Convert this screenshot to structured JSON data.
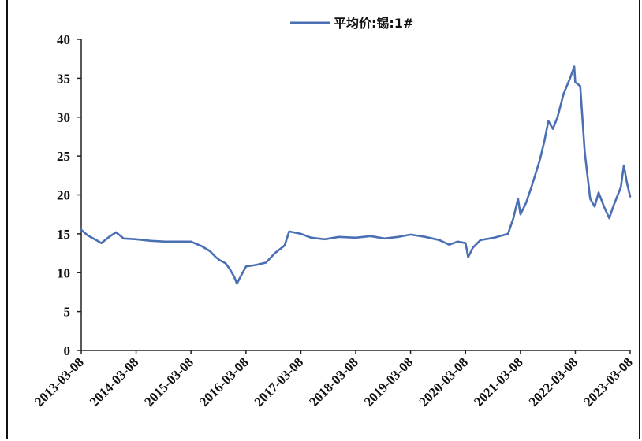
{
  "chart_data": {
    "type": "line",
    "title": "",
    "xlabel": "",
    "ylabel": "",
    "ylim": [
      0,
      40
    ],
    "yticks": [
      0,
      5,
      10,
      15,
      20,
      25,
      30,
      35,
      40
    ],
    "xticks": [
      "2013-03-08",
      "2014-03-08",
      "2015-03-08",
      "2016-03-08",
      "2017-03-08",
      "2018-03-08",
      "2019-03-08",
      "2020-03-08",
      "2021-03-08",
      "2022-03-08",
      "2023-03-08"
    ],
    "xlim": [
      "2013-03-08",
      "2023-03-08"
    ],
    "grid": false,
    "legend_position": "top",
    "series": [
      {
        "name": "平均价:锡:1#",
        "color": "#4a6fb3",
        "points": [
          [
            "2013-03-08",
            15.5
          ],
          [
            "2013-04-20",
            14.8
          ],
          [
            "2013-06-15",
            14.2
          ],
          [
            "2013-07-20",
            13.8
          ],
          [
            "2013-09-10",
            14.6
          ],
          [
            "2013-10-25",
            15.2
          ],
          [
            "2013-12-15",
            14.4
          ],
          [
            "2014-03-08",
            14.3
          ],
          [
            "2014-06-15",
            14.1
          ],
          [
            "2014-09-20",
            14.0
          ],
          [
            "2014-12-15",
            14.0
          ],
          [
            "2015-03-08",
            14.0
          ],
          [
            "2015-05-20",
            13.4
          ],
          [
            "2015-07-10",
            12.8
          ],
          [
            "2015-08-20",
            12.0
          ],
          [
            "2015-09-15",
            11.6
          ],
          [
            "2015-10-25",
            11.2
          ],
          [
            "2015-11-20",
            10.5
          ],
          [
            "2015-12-20",
            9.5
          ],
          [
            "2016-01-08",
            8.6
          ],
          [
            "2016-02-01",
            9.5
          ],
          [
            "2016-03-08",
            10.8
          ],
          [
            "2016-05-15",
            11.0
          ],
          [
            "2016-07-20",
            11.3
          ],
          [
            "2016-09-15",
            12.5
          ],
          [
            "2016-11-20",
            13.5
          ],
          [
            "2016-12-20",
            15.3
          ],
          [
            "2017-03-08",
            15.0
          ],
          [
            "2017-05-15",
            14.5
          ],
          [
            "2017-08-15",
            14.3
          ],
          [
            "2017-11-15",
            14.6
          ],
          [
            "2018-03-08",
            14.5
          ],
          [
            "2018-06-15",
            14.7
          ],
          [
            "2018-09-15",
            14.4
          ],
          [
            "2018-12-15",
            14.6
          ],
          [
            "2019-03-08",
            14.9
          ],
          [
            "2019-06-15",
            14.6
          ],
          [
            "2019-09-15",
            14.2
          ],
          [
            "2019-11-20",
            13.6
          ],
          [
            "2020-01-15",
            14.0
          ],
          [
            "2020-03-08",
            13.8
          ],
          [
            "2020-03-25",
            12.0
          ],
          [
            "2020-04-25",
            13.2
          ],
          [
            "2020-06-15",
            14.2
          ],
          [
            "2020-09-15",
            14.5
          ],
          [
            "2020-12-15",
            15.0
          ],
          [
            "2021-01-20",
            17.0
          ],
          [
            "2021-02-20",
            19.5
          ],
          [
            "2021-03-08",
            17.5
          ],
          [
            "2021-04-15",
            19.0
          ],
          [
            "2021-05-20",
            21.0
          ],
          [
            "2021-07-15",
            24.5
          ],
          [
            "2021-08-15",
            27.0
          ],
          [
            "2021-09-10",
            29.5
          ],
          [
            "2021-10-10",
            28.5
          ],
          [
            "2021-11-10",
            30.0
          ],
          [
            "2021-12-20",
            33.0
          ],
          [
            "2022-02-01",
            35.0
          ],
          [
            "2022-03-01",
            36.5
          ],
          [
            "2022-03-08",
            34.5
          ],
          [
            "2022-04-10",
            34.0
          ],
          [
            "2022-05-10",
            25.5
          ],
          [
            "2022-06-15",
            19.5
          ],
          [
            "2022-07-15",
            18.5
          ],
          [
            "2022-08-10",
            20.3
          ],
          [
            "2022-09-15",
            18.5
          ],
          [
            "2022-10-20",
            17.0
          ],
          [
            "2022-11-15",
            18.5
          ],
          [
            "2023-01-05",
            21.0
          ],
          [
            "2023-01-25",
            23.8
          ],
          [
            "2023-02-15",
            21.5
          ],
          [
            "2023-03-08",
            19.8
          ]
        ]
      }
    ]
  }
}
